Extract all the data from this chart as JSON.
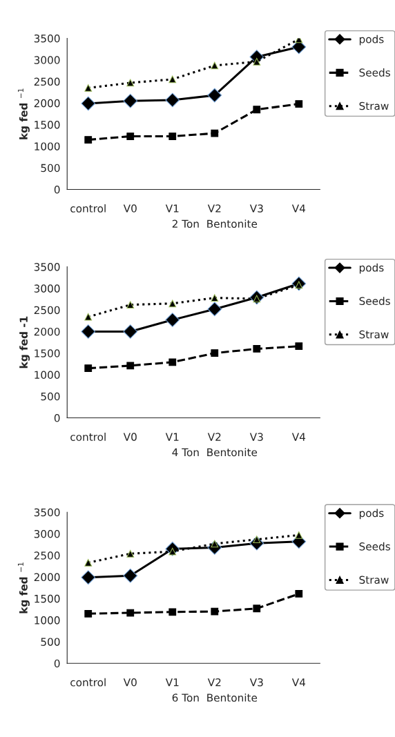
{
  "chart_data": [
    {
      "type": "line",
      "categories": [
        "control",
        "V0",
        "V1",
        "V2",
        "V3",
        "V4"
      ],
      "xlabel": "2 Ton  Bentonite",
      "ylabel": "kg fed $^{−1}$",
      "ylim": [
        0,
        3500
      ],
      "yticks": [
        0,
        500,
        1000,
        1500,
        2000,
        2500,
        3000,
        3500
      ],
      "grid": false,
      "legend": "right",
      "series": [
        {
          "name": "pods",
          "color": "#000000",
          "marker": "diamond",
          "line_style": "solid",
          "values": [
            1990,
            2050,
            2070,
            2180,
            3070,
            3300
          ]
        },
        {
          "name": "Seeds",
          "color": "#000000",
          "marker": "square",
          "line_style": "dashed",
          "values": [
            1150,
            1230,
            1230,
            1300,
            1850,
            1980
          ]
        },
        {
          "name": "Straw",
          "color": "#000000",
          "marker": "triangle",
          "line_style": "dotted",
          "values": [
            2350,
            2470,
            2550,
            2870,
            2960,
            3480
          ]
        }
      ]
    },
    {
      "type": "line",
      "categories": [
        "control",
        "V0",
        "V1",
        "V2",
        "V3",
        "V4"
      ],
      "xlabel": "4 Ton  Bentonite",
      "ylabel": "kg fed -1",
      "ylim": [
        0,
        3500
      ],
      "yticks": [
        0,
        500,
        1000,
        1500,
        2000,
        2500,
        3000,
        3500
      ],
      "grid": false,
      "legend": "right",
      "series": [
        {
          "name": "pods",
          "color": "#000000",
          "marker": "diamond",
          "line_style": "solid",
          "values": [
            2000,
            2000,
            2270,
            2520,
            2790,
            3110
          ]
        },
        {
          "name": "Seeds",
          "color": "#000000",
          "marker": "square",
          "line_style": "dashed",
          "values": [
            1150,
            1210,
            1290,
            1500,
            1600,
            1660
          ]
        },
        {
          "name": "Straw",
          "color": "#000000",
          "marker": "triangle",
          "line_style": "dotted",
          "values": [
            2340,
            2620,
            2650,
            2780,
            2760,
            3080
          ]
        }
      ]
    },
    {
      "type": "line",
      "categories": [
        "control",
        "V0",
        "V1",
        "V2",
        "V3",
        "V4"
      ],
      "xlabel": "6 Ton  Bentonite",
      "ylabel": "kg fed $^{−1}$",
      "ylim": [
        0,
        3500
      ],
      "yticks": [
        0,
        500,
        1000,
        1500,
        2000,
        2500,
        3000,
        3500
      ],
      "grid": false,
      "legend": "right",
      "series": [
        {
          "name": "pods",
          "color": "#000000",
          "marker": "diamond",
          "line_style": "solid",
          "values": [
            1990,
            2030,
            2650,
            2680,
            2780,
            2820
          ]
        },
        {
          "name": "Seeds",
          "color": "#000000",
          "marker": "square",
          "line_style": "dashed",
          "values": [
            1150,
            1170,
            1190,
            1200,
            1270,
            1610
          ]
        },
        {
          "name": "Straw",
          "color": "#000000",
          "marker": "triangle",
          "line_style": "dotted",
          "values": [
            2330,
            2540,
            2590,
            2770,
            2870,
            2970
          ]
        }
      ]
    }
  ]
}
